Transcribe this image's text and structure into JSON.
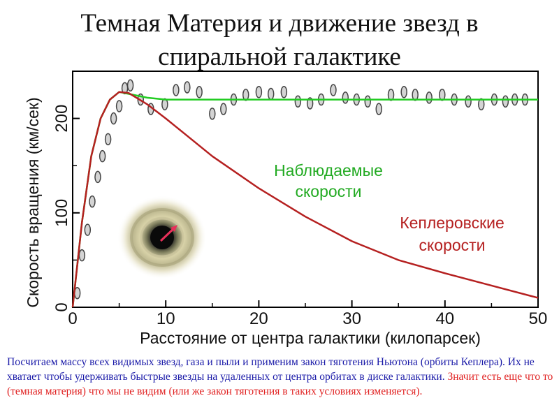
{
  "title": {
    "line1": "Темная Материя и движение звезд в",
    "line2": "спиральной галактике"
  },
  "caption": {
    "part1": "Посчитаем массу всех видимых звезд, газа и пыли и применим закон тяготения Ньютона (орбиты Кеплера). Их не хватает чтобы удерживать быстрые звезды на удаленных от центра орбитах в диске галактики.",
    "part2": "Значит есть еще что то (темная материя) что мы не видим (или же закон тяготения в таких условиях изменяется)."
  },
  "chart_data": {
    "type": "line",
    "title": "",
    "xlabel": "Расстояние от центра галактики (килопарсек)",
    "ylabel": "Скорость вращения (км/сек)",
    "xlim": [
      0,
      50
    ],
    "ylim": [
      0,
      250
    ],
    "x_ticks": [
      0,
      10,
      20,
      30,
      40,
      50
    ],
    "y_ticks": [
      0,
      100,
      200
    ],
    "grid": false,
    "series": [
      {
        "name": "Наблюдаемые скорости",
        "color": "#22cc22",
        "kind": "line",
        "x": [
          0,
          1,
          2,
          3,
          4,
          5,
          6,
          8,
          10,
          20,
          30,
          40,
          50
        ],
        "y": [
          0,
          90,
          160,
          200,
          220,
          228,
          226,
          222,
          220,
          220,
          220,
          220,
          220
        ]
      },
      {
        "name": "Кеплеровские скорости",
        "color": "#b52020",
        "kind": "line",
        "x": [
          0,
          1,
          2,
          3,
          4,
          5,
          6,
          8,
          10,
          12,
          15,
          20,
          25,
          30,
          35,
          40,
          45,
          50
        ],
        "y": [
          0,
          90,
          160,
          200,
          220,
          228,
          227,
          215,
          200,
          184,
          160,
          126,
          96,
          70,
          50,
          36,
          23,
          10
        ]
      },
      {
        "name": "",
        "color": "#444444",
        "kind": "points",
        "x": [
          0.5,
          1,
          1.6,
          2.1,
          2.7,
          3.2,
          3.8,
          4.4,
          5,
          5.6,
          6.2,
          7.3,
          8.4,
          9.9,
          11.1,
          12.3,
          13.6,
          15,
          16.2,
          17.3,
          18.6,
          20,
          21.3,
          22.7,
          24.2,
          25.5,
          26.7,
          28,
          29.3,
          30.5,
          31.7,
          32.9,
          34.2,
          35.6,
          36.8,
          38.3,
          39.7,
          41,
          42.5,
          43.9,
          45.3,
          46.5,
          47.5,
          48.6
        ],
        "y": [
          15,
          55,
          82,
          112,
          138,
          160,
          178,
          200,
          213,
          232,
          235,
          220,
          210,
          215,
          230,
          233,
          228,
          205,
          210,
          220,
          225,
          228,
          226,
          228,
          218,
          216,
          220,
          230,
          222,
          220,
          218,
          210,
          225,
          228,
          225,
          222,
          225,
          220,
          218,
          215,
          220,
          218,
          220,
          220
        ]
      }
    ],
    "annotations": [
      {
        "line1": "Наблюдаемые",
        "line2": "скорости",
        "color": "#22aa22"
      },
      {
        "line1": "Кеплеровские",
        "line2": "скорости",
        "color": "#b52020"
      }
    ]
  }
}
